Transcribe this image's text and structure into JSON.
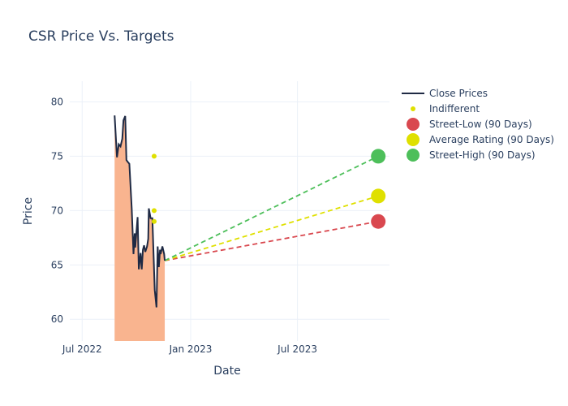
{
  "chart_data": {
    "type": "line",
    "title": "CSR Price Vs. Targets",
    "xlabel": "Date",
    "ylabel": "Price",
    "xlim": [
      "2022-06-10",
      "2023-12-04"
    ],
    "ylim": [
      58,
      81.9
    ],
    "grid": true,
    "legend_position": "top-right",
    "xticks": [
      {
        "date": "2022-07-01",
        "label": "Jul 2022"
      },
      {
        "date": "2023-01-01",
        "label": "Jan 2023"
      },
      {
        "date": "2023-07-01",
        "label": "Jul 2023"
      }
    ],
    "yticks": [
      60,
      65,
      70,
      75,
      80
    ],
    "close_prices": {
      "name": "Close Prices",
      "color": "#1f2a44",
      "fill": "#f9b48f",
      "x": [
        "2022-08-25",
        "2022-08-29",
        "2022-09-01",
        "2022-09-04",
        "2022-09-07",
        "2022-09-09",
        "2022-09-12",
        "2022-09-14",
        "2022-09-16",
        "2022-09-19",
        "2022-09-23",
        "2022-09-26",
        "2022-09-28",
        "2022-09-29",
        "2022-10-03",
        "2022-10-05",
        "2022-10-08",
        "2022-10-10",
        "2022-10-12",
        "2022-10-14",
        "2022-10-16",
        "2022-10-19",
        "2022-10-21",
        "2022-10-22",
        "2022-10-25",
        "2022-10-28",
        "2022-10-30",
        "2022-11-01",
        "2022-11-04",
        "2022-11-06",
        "2022-11-08",
        "2022-11-10",
        "2022-11-11",
        "2022-11-14",
        "2022-11-17",
        "2022-11-18"
      ],
      "y": [
        78.75,
        74.9,
        76.1,
        75.9,
        76.6,
        78.3,
        78.7,
        74.65,
        74.5,
        74.3,
        70.2,
        66.0,
        67.9,
        66.6,
        69.4,
        64.6,
        66.1,
        64.6,
        66.4,
        66.8,
        66.2,
        66.7,
        67.4,
        70.2,
        69.3,
        69.3,
        66.0,
        62.7,
        61.1,
        66.7,
        64.8,
        66.4,
        66.0,
        66.7,
        66.0,
        65.4
      ]
    },
    "indifferent": {
      "name": "Indifferent",
      "color": "#dfe000",
      "x": [
        "2022-10-31",
        "2022-10-31",
        "2022-10-31"
      ],
      "y": [
        75,
        70,
        69
      ]
    },
    "targets": [
      {
        "name": "Street-Low (90 Days)",
        "color": "#d9484f",
        "date": "2023-11-15",
        "value": 69.0
      },
      {
        "name": "Average Rating (90 Days)",
        "color": "#dfe000",
        "date": "2023-11-15",
        "value": 71.34
      },
      {
        "name": "Street-High (90 Days)",
        "color": "#4dbf5a",
        "date": "2023-11-15",
        "value": 75.0
      }
    ]
  }
}
